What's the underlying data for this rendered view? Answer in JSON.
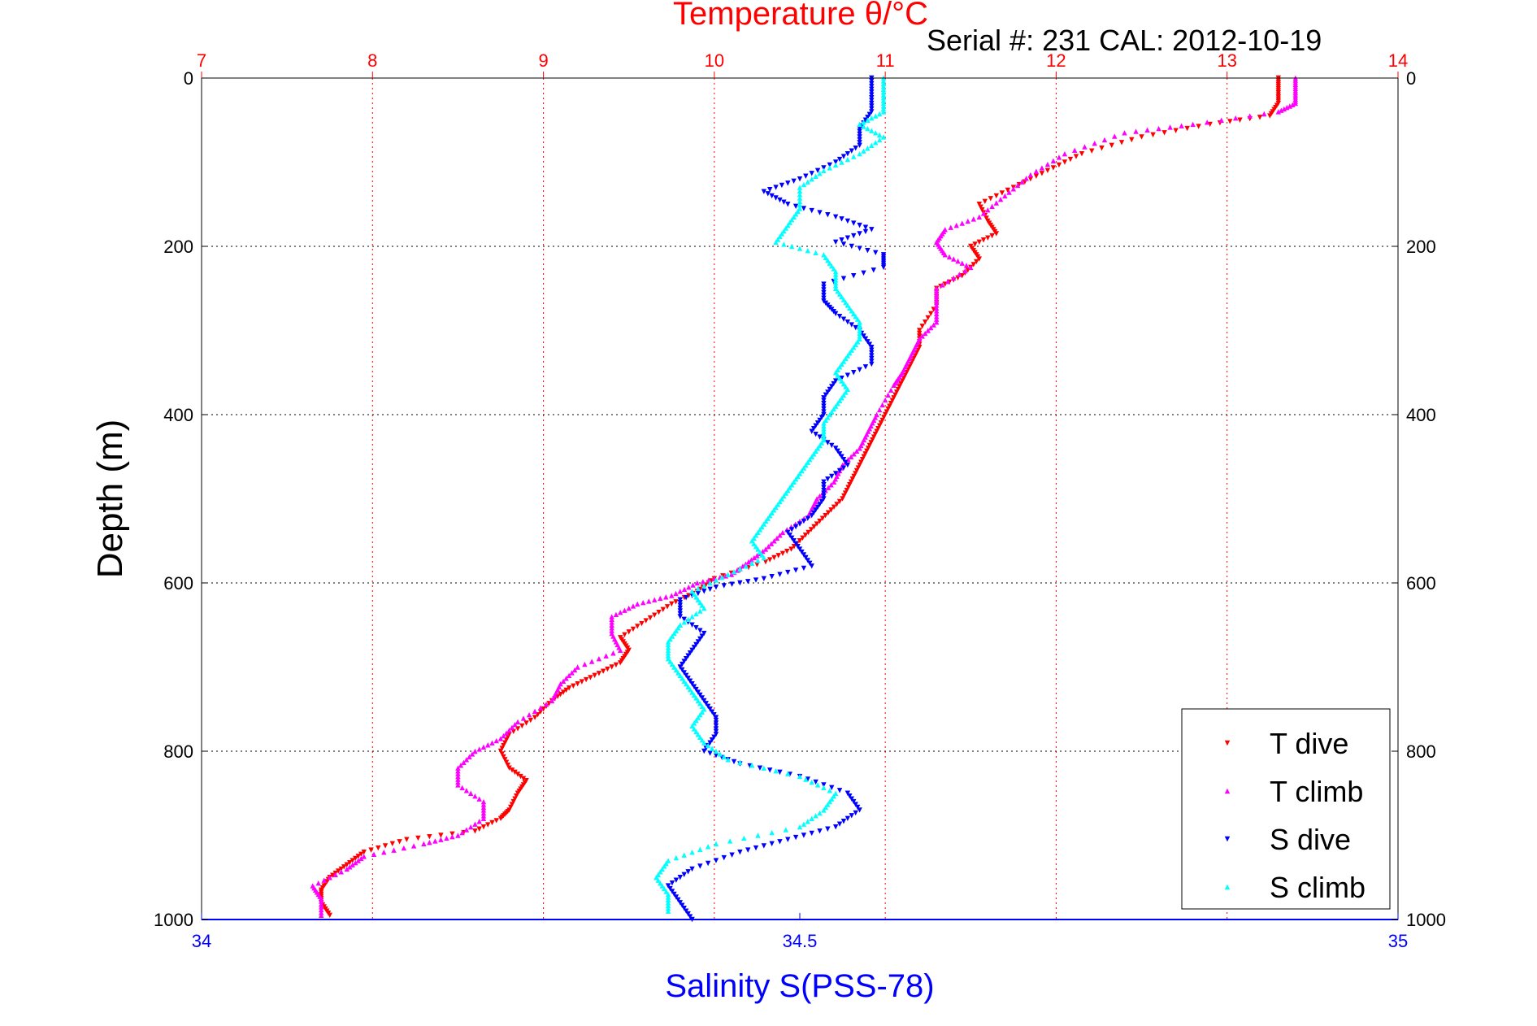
{
  "chart_data": {
    "type": "scatter",
    "title": "Temperature θ/°C",
    "subtitle": "Serial #: 231  CAL: 2012-10-19",
    "xlabel": "Salinity S(PSS-78)",
    "ylabel": "Depth (m)",
    "top_axis": {
      "range": [
        7,
        14
      ],
      "ticks": [
        "7",
        "8",
        "9",
        "10",
        "11",
        "12",
        "13",
        "14"
      ],
      "color": "#ff0000"
    },
    "bottom_axis": {
      "range": [
        34,
        35
      ],
      "ticks": [
        "34",
        "34.5",
        "35"
      ],
      "color": "#0000ff"
    },
    "y_axis": {
      "range": [
        0,
        1000
      ],
      "reversed": true,
      "ticks": [
        "0",
        "200",
        "400",
        "600",
        "800",
        "1000"
      ]
    },
    "grid": true,
    "legend_position": "bottom-right",
    "series": [
      {
        "name": "T dive",
        "axis": "temperature",
        "color": "#ff0000",
        "marker": "triangle-down",
        "points": [
          [
            13.3,
            0
          ],
          [
            13.3,
            15
          ],
          [
            13.3,
            30
          ],
          [
            13.25,
            45
          ],
          [
            12.9,
            55
          ],
          [
            12.5,
            70
          ],
          [
            12.15,
            90
          ],
          [
            11.95,
            110
          ],
          [
            11.75,
            130
          ],
          [
            11.55,
            150
          ],
          [
            11.6,
            170
          ],
          [
            11.65,
            185
          ],
          [
            11.5,
            200
          ],
          [
            11.55,
            215
          ],
          [
            11.45,
            235
          ],
          [
            11.3,
            250
          ],
          [
            11.3,
            270
          ],
          [
            11.2,
            300
          ],
          [
            11.2,
            320
          ],
          [
            11.15,
            340
          ],
          [
            11.1,
            360
          ],
          [
            11.05,
            380
          ],
          [
            11.0,
            400
          ],
          [
            10.95,
            420
          ],
          [
            10.9,
            440
          ],
          [
            10.85,
            460
          ],
          [
            10.8,
            480
          ],
          [
            10.75,
            500
          ],
          [
            10.65,
            520
          ],
          [
            10.55,
            540
          ],
          [
            10.45,
            560
          ],
          [
            10.3,
            575
          ],
          [
            10.0,
            595
          ],
          [
            9.9,
            610
          ],
          [
            9.75,
            625
          ],
          [
            9.6,
            645
          ],
          [
            9.45,
            665
          ],
          [
            9.5,
            680
          ],
          [
            9.45,
            695
          ],
          [
            9.3,
            710
          ],
          [
            9.15,
            725
          ],
          [
            9.05,
            740
          ],
          [
            8.95,
            760
          ],
          [
            8.8,
            780
          ],
          [
            8.75,
            800
          ],
          [
            8.8,
            820
          ],
          [
            8.9,
            835
          ],
          [
            8.85,
            850
          ],
          [
            8.8,
            870
          ],
          [
            8.75,
            880
          ],
          [
            8.6,
            895
          ],
          [
            8.2,
            905
          ],
          [
            7.95,
            920
          ],
          [
            7.85,
            935
          ],
          [
            7.75,
            950
          ],
          [
            7.7,
            965
          ],
          [
            7.7,
            980
          ],
          [
            7.75,
            995
          ]
        ]
      },
      {
        "name": "T climb",
        "axis": "temperature",
        "color": "#ff00ff",
        "marker": "triangle-up",
        "points": [
          [
            13.4,
            0
          ],
          [
            13.4,
            15
          ],
          [
            13.4,
            30
          ],
          [
            13.3,
            40
          ],
          [
            12.8,
            55
          ],
          [
            12.4,
            65
          ],
          [
            12.05,
            90
          ],
          [
            11.85,
            115
          ],
          [
            11.7,
            140
          ],
          [
            11.55,
            165
          ],
          [
            11.35,
            180
          ],
          [
            11.3,
            195
          ],
          [
            11.35,
            210
          ],
          [
            11.5,
            225
          ],
          [
            11.3,
            250
          ],
          [
            11.3,
            270
          ],
          [
            11.3,
            290
          ],
          [
            11.2,
            310
          ],
          [
            11.15,
            330
          ],
          [
            11.1,
            350
          ],
          [
            11.05,
            365
          ],
          [
            10.95,
            400
          ],
          [
            10.9,
            420
          ],
          [
            10.85,
            440
          ],
          [
            10.75,
            460
          ],
          [
            10.7,
            480
          ],
          [
            10.6,
            500
          ],
          [
            10.55,
            520
          ],
          [
            10.4,
            540
          ],
          [
            10.3,
            560
          ],
          [
            10.2,
            575
          ],
          [
            10.1,
            590
          ],
          [
            9.9,
            600
          ],
          [
            9.75,
            615
          ],
          [
            9.55,
            625
          ],
          [
            9.4,
            640
          ],
          [
            9.4,
            660
          ],
          [
            9.45,
            680
          ],
          [
            9.2,
            700
          ],
          [
            9.1,
            720
          ],
          [
            9.05,
            740
          ],
          [
            8.85,
            765
          ],
          [
            8.75,
            785
          ],
          [
            8.6,
            800
          ],
          [
            8.5,
            820
          ],
          [
            8.5,
            840
          ],
          [
            8.65,
            860
          ],
          [
            8.65,
            880
          ],
          [
            8.5,
            900
          ],
          [
            8.3,
            910
          ],
          [
            7.95,
            925
          ],
          [
            7.85,
            940
          ],
          [
            7.65,
            960
          ],
          [
            7.7,
            975
          ],
          [
            7.7,
            995
          ]
        ]
      },
      {
        "name": "S dive",
        "axis": "salinity",
        "color": "#0000ff",
        "marker": "triangle-down",
        "points": [
          [
            34.56,
            0
          ],
          [
            34.56,
            20
          ],
          [
            34.56,
            40
          ],
          [
            34.55,
            60
          ],
          [
            34.55,
            80
          ],
          [
            34.53,
            100
          ],
          [
            34.5,
            120
          ],
          [
            34.47,
            135
          ],
          [
            34.49,
            150
          ],
          [
            34.53,
            165
          ],
          [
            34.56,
            180
          ],
          [
            34.53,
            195
          ],
          [
            34.57,
            210
          ],
          [
            34.57,
            225
          ],
          [
            34.52,
            245
          ],
          [
            34.52,
            265
          ],
          [
            34.53,
            280
          ],
          [
            34.55,
            300
          ],
          [
            34.56,
            320
          ],
          [
            34.56,
            340
          ],
          [
            34.53,
            360
          ],
          [
            34.52,
            380
          ],
          [
            34.52,
            400
          ],
          [
            34.51,
            420
          ],
          [
            34.53,
            440
          ],
          [
            34.54,
            460
          ],
          [
            34.52,
            480
          ],
          [
            34.52,
            500
          ],
          [
            34.51,
            520
          ],
          [
            34.49,
            540
          ],
          [
            34.5,
            560
          ],
          [
            34.51,
            580
          ],
          [
            34.47,
            595
          ],
          [
            34.43,
            605
          ],
          [
            34.4,
            620
          ],
          [
            34.4,
            640
          ],
          [
            34.42,
            660
          ],
          [
            34.41,
            680
          ],
          [
            34.4,
            700
          ],
          [
            34.41,
            720
          ],
          [
            34.42,
            740
          ],
          [
            34.43,
            760
          ],
          [
            34.43,
            780
          ],
          [
            34.42,
            800
          ],
          [
            34.45,
            815
          ],
          [
            34.5,
            830
          ],
          [
            34.54,
            850
          ],
          [
            34.55,
            870
          ],
          [
            34.53,
            890
          ],
          [
            34.49,
            905
          ],
          [
            34.45,
            920
          ],
          [
            34.41,
            940
          ],
          [
            34.39,
            960
          ],
          [
            34.4,
            980
          ],
          [
            34.41,
            1000
          ]
        ]
      },
      {
        "name": "S climb",
        "axis": "salinity",
        "color": "#00ffff",
        "marker": "triangle-up",
        "points": [
          [
            34.57,
            0
          ],
          [
            34.57,
            20
          ],
          [
            34.57,
            40
          ],
          [
            34.55,
            55
          ],
          [
            34.57,
            70
          ],
          [
            34.55,
            90
          ],
          [
            34.52,
            110
          ],
          [
            34.5,
            130
          ],
          [
            34.5,
            155
          ],
          [
            34.49,
            175
          ],
          [
            34.48,
            195
          ],
          [
            34.52,
            210
          ],
          [
            34.53,
            230
          ],
          [
            34.53,
            250
          ],
          [
            34.54,
            270
          ],
          [
            34.55,
            290
          ],
          [
            34.55,
            310
          ],
          [
            34.54,
            330
          ],
          [
            34.53,
            350
          ],
          [
            34.54,
            370
          ],
          [
            34.53,
            390
          ],
          [
            34.52,
            410
          ],
          [
            34.52,
            430
          ],
          [
            34.51,
            450
          ],
          [
            34.5,
            470
          ],
          [
            34.49,
            490
          ],
          [
            34.48,
            510
          ],
          [
            34.47,
            530
          ],
          [
            34.46,
            550
          ],
          [
            34.47,
            570
          ],
          [
            34.44,
            590
          ],
          [
            34.41,
            610
          ],
          [
            34.42,
            630
          ],
          [
            34.4,
            650
          ],
          [
            34.39,
            670
          ],
          [
            34.39,
            690
          ],
          [
            34.4,
            710
          ],
          [
            34.41,
            730
          ],
          [
            34.42,
            750
          ],
          [
            34.41,
            770
          ],
          [
            34.42,
            790
          ],
          [
            34.44,
            810
          ],
          [
            34.5,
            830
          ],
          [
            34.53,
            850
          ],
          [
            34.52,
            870
          ],
          [
            34.5,
            890
          ],
          [
            34.43,
            910
          ],
          [
            34.39,
            930
          ],
          [
            34.38,
            950
          ],
          [
            34.39,
            970
          ],
          [
            34.39,
            990
          ]
        ]
      }
    ]
  }
}
